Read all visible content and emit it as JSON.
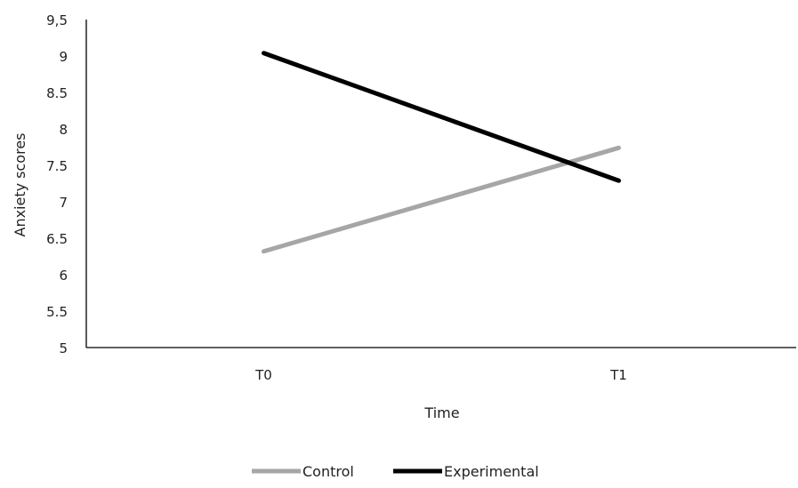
{
  "chart_data": {
    "type": "line",
    "categories": [
      "T0",
      "T1"
    ],
    "series": [
      {
        "name": "Control",
        "values": [
          6.32,
          7.74
        ],
        "color": "#a6a6a6"
      },
      {
        "name": "Experimental",
        "values": [
          9.04,
          7.29
        ],
        "color": "#000000"
      }
    ],
    "xlabel": "Time",
    "ylabel": "Anxiety scores",
    "ylim": [
      5,
      9.5
    ],
    "yticks": [
      5,
      5.5,
      6,
      6.5,
      7,
      7.5,
      8,
      8.5,
      9,
      9.5
    ],
    "ytick_labels": [
      "5",
      "5.5",
      "6",
      "6.5",
      "7",
      "7.5",
      "8",
      "8.5",
      "9",
      "9,5"
    ],
    "grid": false,
    "legend_position": "bottom"
  }
}
